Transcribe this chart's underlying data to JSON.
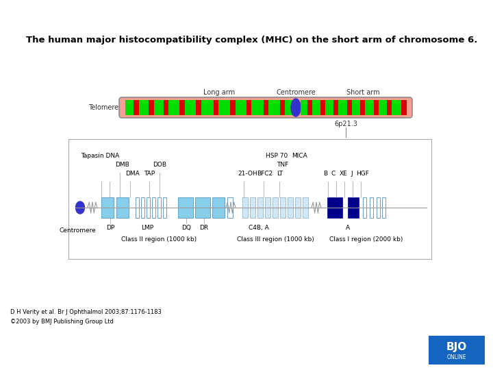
{
  "title": "The human major histocompatibility complex (MHC) on the short arm of chromosome 6.",
  "bg_color": "#ffffff",
  "citation1": "D H Verity et al. Br J Ophthalmol 2003;87:1176-1183",
  "citation2": "©2003 by BMJ Publishing Group Ltd",
  "light_blue": "#87CEEB",
  "dark_blue": "#00008B",
  "centromere_color": "#3333cc"
}
